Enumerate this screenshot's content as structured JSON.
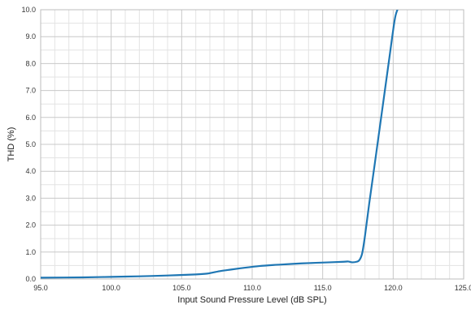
{
  "chart_data": {
    "type": "line",
    "title": "",
    "xlabel": "Input Sound Pressure Level (dB SPL)",
    "ylabel": "THD (%)",
    "xlim": [
      95.0,
      125.0
    ],
    "ylim": [
      0.0,
      10.0
    ],
    "x_ticks": [
      "95.0",
      "100.0",
      "105.0",
      "110.0",
      "115.0",
      "120.0",
      "125.0"
    ],
    "y_ticks": [
      "0.0",
      "1.0",
      "2.0",
      "3.0",
      "4.0",
      "5.0",
      "6.0",
      "7.0",
      "8.0",
      "9.0",
      "10.0"
    ],
    "x_minor_step": 1,
    "y_minor_step": 0.5,
    "grid": true,
    "series": [
      {
        "color": "#1f77b4",
        "x": [
          95.0,
          98.0,
          100.0,
          102.0,
          104.0,
          106.0,
          106.8,
          107.2,
          107.8,
          108.5,
          109.5,
          110.5,
          111.5,
          112.5,
          113.5,
          114.5,
          115.5,
          116.5,
          116.8,
          117.1,
          117.4,
          117.6,
          117.8,
          118.0,
          118.3,
          118.7,
          119.2,
          119.7,
          120.1,
          120.3
        ],
        "y": [
          0.05,
          0.06,
          0.08,
          0.1,
          0.13,
          0.17,
          0.2,
          0.24,
          0.3,
          0.35,
          0.42,
          0.48,
          0.52,
          0.55,
          0.58,
          0.6,
          0.62,
          0.64,
          0.65,
          0.62,
          0.64,
          0.7,
          0.95,
          1.6,
          2.8,
          4.3,
          6.2,
          8.1,
          9.6,
          10.0
        ]
      }
    ]
  }
}
